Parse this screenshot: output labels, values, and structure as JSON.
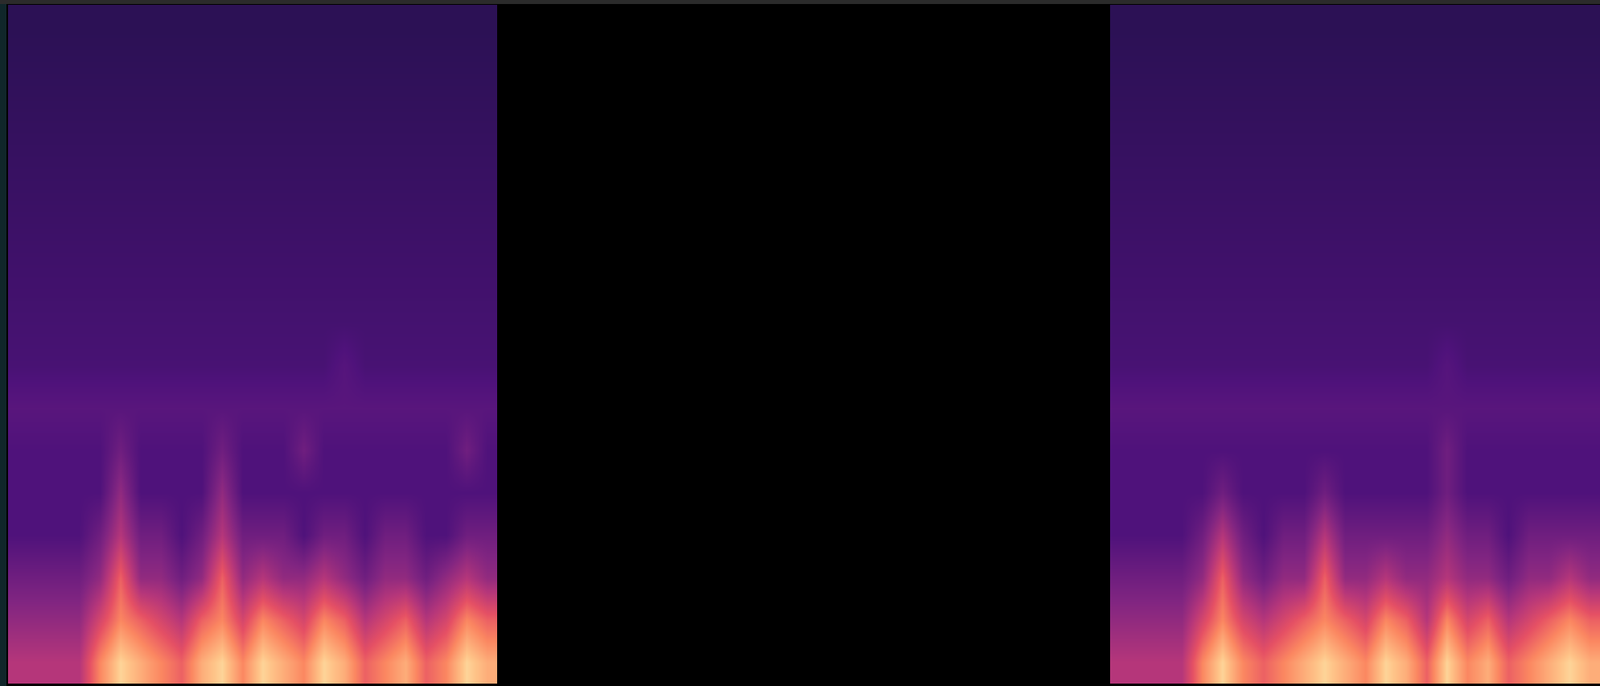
{
  "chart_data": [
    {
      "type": "heatmap",
      "tick_labels": false,
      "grid": false,
      "xlim": [
        -0.5,
        23.5
      ],
      "ylim": [
        -0.5,
        15.5
      ],
      "zlim": [
        0,
        12
      ],
      "cells": [
        [
          6,
          6,
          6,
          6,
          9,
          11,
          10,
          9,
          8,
          10,
          11,
          9,
          11,
          10,
          9,
          11,
          10,
          8,
          9,
          10,
          8,
          9,
          11,
          10
        ],
        [
          5,
          5,
          5,
          5,
          7,
          9,
          8,
          7,
          6,
          8,
          9,
          7,
          9,
          8,
          7,
          9,
          8,
          6,
          7,
          8,
          6,
          7,
          9,
          8
        ],
        [
          4,
          4,
          4,
          4,
          5,
          8,
          5,
          5,
          4,
          5,
          8,
          5,
          6,
          5,
          5,
          6,
          5,
          4,
          5,
          5,
          4,
          5,
          6,
          5
        ],
        [
          3,
          3,
          3,
          3,
          4,
          6,
          4,
          4,
          3,
          4,
          6,
          4,
          4,
          4,
          3,
          4,
          4,
          3,
          4,
          4,
          3,
          3,
          4,
          4
        ],
        [
          3,
          3,
          3,
          3,
          3,
          5,
          3,
          3,
          3,
          3,
          5,
          3,
          3,
          3,
          3,
          3,
          3,
          3,
          3,
          3,
          3,
          3,
          3,
          3
        ],
        [
          3,
          3,
          3,
          3,
          3,
          4,
          3,
          3,
          3,
          3,
          4,
          3,
          3,
          3,
          4,
          3,
          3,
          3,
          3,
          3,
          3,
          3,
          4,
          3
        ],
        [
          3.3,
          3.3,
          3.3,
          3.3,
          3.3,
          3.3,
          3.3,
          3.3,
          3.3,
          3.3,
          3.3,
          3.3,
          3.3,
          3.3,
          3.3,
          3.3,
          3.3,
          3.3,
          3.3,
          3.3,
          3.3,
          3.3,
          3.3,
          3.3
        ],
        [
          2.8,
          2.8,
          2.8,
          2.8,
          2.8,
          2.8,
          2.8,
          2.8,
          2.8,
          2.8,
          2.8,
          2.8,
          2.8,
          2.8,
          2.8,
          2.8,
          3.2,
          2.8,
          2.8,
          2.8,
          2.8,
          2.8,
          2.8,
          2.8
        ],
        [
          2.7,
          2.7,
          2.7,
          2.7,
          2.7,
          2.7,
          2.7,
          2.7,
          2.7,
          2.7,
          2.7,
          2.7,
          2.7,
          2.7,
          2.7,
          2.7,
          2.7,
          2.7,
          2.7,
          2.7,
          2.7,
          2.7,
          2.7,
          2.7
        ],
        [
          2.6,
          2.6,
          2.6,
          2.6,
          2.6,
          2.6,
          2.6,
          2.6,
          2.6,
          2.6,
          2.6,
          2.6,
          2.6,
          2.6,
          2.6,
          2.6,
          2.6,
          2.6,
          2.6,
          2.6,
          2.6,
          2.6,
          2.6,
          2.6
        ],
        [
          2.5,
          2.5,
          2.5,
          2.5,
          2.5,
          2.5,
          2.5,
          2.5,
          2.5,
          2.5,
          2.5,
          2.5,
          2.5,
          2.5,
          2.5,
          2.5,
          2.5,
          2.5,
          2.5,
          2.5,
          2.5,
          2.5,
          2.5,
          2.5
        ],
        [
          2.4,
          2.4,
          2.4,
          2.4,
          2.4,
          2.4,
          2.4,
          2.4,
          2.4,
          2.4,
          2.4,
          2.4,
          2.4,
          2.4,
          2.4,
          2.4,
          2.4,
          2.4,
          2.4,
          2.4,
          2.4,
          2.4,
          2.4,
          2.4
        ],
        [
          2.3,
          2.3,
          2.3,
          2.3,
          2.3,
          2.3,
          2.3,
          2.3,
          2.3,
          2.3,
          2.3,
          2.3,
          2.3,
          2.3,
          2.3,
          2.3,
          2.3,
          2.3,
          2.3,
          2.3,
          2.3,
          2.3,
          2.3,
          2.3
        ],
        [
          2.2,
          2.2,
          2.2,
          2.2,
          2.2,
          2.2,
          2.2,
          2.2,
          2.2,
          2.2,
          2.2,
          2.2,
          2.2,
          2.2,
          2.2,
          2.2,
          2.2,
          2.2,
          2.2,
          2.2,
          2.2,
          2.2,
          2.2,
          2.2
        ],
        [
          2.1,
          2.1,
          2.1,
          2.1,
          2.1,
          2.1,
          2.1,
          2.1,
          2.1,
          2.1,
          2.1,
          2.1,
          2.1,
          2.1,
          2.1,
          2.1,
          2.1,
          2.1,
          2.1,
          2.1,
          2.1,
          2.1,
          2.1,
          2.1
        ],
        [
          2,
          2,
          2,
          2,
          2,
          2,
          2,
          2,
          2,
          2,
          2,
          2,
          2,
          2,
          2,
          2,
          2,
          2,
          2,
          2,
          2,
          2,
          2,
          2
        ]
      ]
    },
    {
      "type": "heatmap",
      "tick_labels": false,
      "grid": false,
      "xlim": [
        -0.5,
        23.5
      ],
      "ylim": [
        -0.5,
        15.5
      ],
      "zlim": [
        0,
        12
      ],
      "cells": [
        [
          6,
          6,
          6,
          6,
          9,
          11,
          9,
          8,
          9,
          10,
          11,
          10,
          9,
          11,
          10,
          8,
          11,
          9,
          10,
          8,
          9,
          10,
          11,
          10
        ],
        [
          5,
          5,
          5,
          5,
          7,
          9,
          7,
          6,
          7,
          8,
          9,
          8,
          7,
          9,
          8,
          6,
          9,
          7,
          8,
          6,
          7,
          8,
          9,
          8
        ],
        [
          4,
          4,
          4,
          4,
          5,
          8,
          5,
          4,
          5,
          5,
          8,
          5,
          5,
          6,
          5,
          5,
          6,
          5,
          5,
          4,
          5,
          5,
          6,
          5
        ],
        [
          3,
          3,
          3,
          3,
          4,
          6,
          4,
          3,
          4,
          4,
          6,
          4,
          4,
          4,
          4,
          4,
          5,
          4,
          4,
          3,
          4,
          4,
          4,
          4
        ],
        [
          3,
          3,
          3,
          3,
          3,
          4,
          3,
          3,
          3,
          3,
          4,
          3,
          3,
          3,
          3,
          3,
          4,
          3,
          3,
          3,
          3,
          3,
          3,
          3
        ],
        [
          3,
          3,
          3,
          3,
          3,
          3,
          3,
          3,
          3,
          3,
          3,
          3,
          3,
          3,
          3,
          3,
          4,
          3,
          3,
          3,
          3,
          3,
          3,
          3
        ],
        [
          3.3,
          3.3,
          3.3,
          3.3,
          3.3,
          3.3,
          3.3,
          3.3,
          3.3,
          3.3,
          3.3,
          3.3,
          3.3,
          3.3,
          3.3,
          3.3,
          3.3,
          3.3,
          3.3,
          3.3,
          3.3,
          3.3,
          3.3,
          3.3
        ],
        [
          2.8,
          2.8,
          2.8,
          2.8,
          2.8,
          2.8,
          2.8,
          2.8,
          2.8,
          2.8,
          2.8,
          2.8,
          2.8,
          2.8,
          2.8,
          2.8,
          3.2,
          2.8,
          2.8,
          2.8,
          2.8,
          2.8,
          2.8,
          2.8
        ],
        [
          2.7,
          2.7,
          2.7,
          2.7,
          2.7,
          2.7,
          2.7,
          2.7,
          2.7,
          2.7,
          2.7,
          2.7,
          2.7,
          2.7,
          2.7,
          2.7,
          2.7,
          2.7,
          2.7,
          2.7,
          2.7,
          2.7,
          2.7,
          2.7
        ],
        [
          2.6,
          2.6,
          2.6,
          2.6,
          2.6,
          2.6,
          2.6,
          2.6,
          2.6,
          2.6,
          2.6,
          2.6,
          2.6,
          2.6,
          2.6,
          2.6,
          2.6,
          2.6,
          2.6,
          2.6,
          2.6,
          2.6,
          2.6,
          2.6
        ],
        [
          2.5,
          2.5,
          2.5,
          2.5,
          2.5,
          2.5,
          2.5,
          2.5,
          2.5,
          2.5,
          2.5,
          2.5,
          2.5,
          2.5,
          2.5,
          2.5,
          2.5,
          2.5,
          2.5,
          2.5,
          2.5,
          2.5,
          2.5,
          2.5
        ],
        [
          2.4,
          2.4,
          2.4,
          2.4,
          2.4,
          2.4,
          2.4,
          2.4,
          2.4,
          2.4,
          2.4,
          2.4,
          2.4,
          2.4,
          2.4,
          2.4,
          2.4,
          2.4,
          2.4,
          2.4,
          2.4,
          2.4,
          2.4,
          2.4
        ],
        [
          2.3,
          2.3,
          2.3,
          2.3,
          2.3,
          2.3,
          2.3,
          2.3,
          2.3,
          2.3,
          2.3,
          2.3,
          2.3,
          2.3,
          2.3,
          2.3,
          2.3,
          2.3,
          2.3,
          2.3,
          2.3,
          2.3,
          2.3,
          2.3
        ],
        [
          2.2,
          2.2,
          2.2,
          2.2,
          2.2,
          2.2,
          2.2,
          2.2,
          2.2,
          2.2,
          2.2,
          2.2,
          2.2,
          2.2,
          2.2,
          2.2,
          2.2,
          2.2,
          2.2,
          2.2,
          2.2,
          2.2,
          2.2,
          2.2
        ],
        [
          2.1,
          2.1,
          2.1,
          2.1,
          2.1,
          2.1,
          2.1,
          2.1,
          2.1,
          2.1,
          2.1,
          2.1,
          2.1,
          2.1,
          2.1,
          2.1,
          2.1,
          2.1,
          2.1,
          2.1,
          2.1,
          2.1,
          2.1,
          2.1
        ],
        [
          2,
          2,
          2,
          2,
          2,
          2,
          2,
          2,
          2,
          2,
          2,
          2,
          2,
          2,
          2,
          2,
          2,
          2,
          2,
          2,
          2,
          2,
          2,
          2
        ]
      ]
    }
  ]
}
